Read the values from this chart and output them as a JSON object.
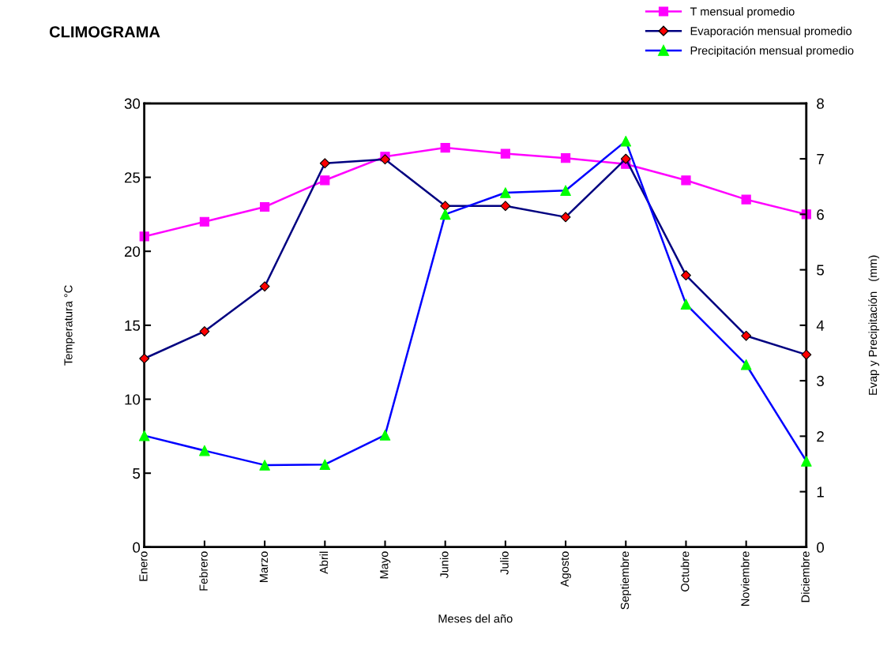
{
  "chart_data": {
    "type": "line",
    "title": "CLIMOGRAMA",
    "xlabel": "Meses del año",
    "ylabel": "Temperatura °C",
    "y2label": "Evap y Precipitación   (mm)",
    "categories": [
      "Enero",
      "Febrero",
      "Marzo",
      "Abril",
      "Mayo",
      "Junio",
      "Julio",
      "Agosto",
      "Septiembre",
      "Octubre",
      "Noviembre",
      "Diciembre"
    ],
    "series": [
      {
        "name": "T mensual promedio",
        "color": "#ff00ff",
        "marker": "square",
        "values": [
          21.0,
          22.0,
          23.0,
          24.8,
          26.4,
          27.0,
          26.6,
          26.3,
          25.9,
          24.8,
          23.5,
          22.5
        ]
      },
      {
        "name": "Evaporación mensual promedio",
        "color": "#000080",
        "marker": "diamond",
        "colors": [
          "#ff0000",
          "#ff0000",
          "#ff0000",
          "#ff0000",
          "#ff0000",
          "#ff0000",
          "#ff0000",
          "#ff0000",
          "#ff0000",
          "#ff0000",
          "#ff0000",
          "#ff0000"
        ],
        "axis": "y2",
        "values": [
          3.4,
          3.89,
          4.7,
          6.92,
          6.99,
          6.15,
          6.15,
          5.95,
          7.0,
          4.9,
          3.81,
          3.47
        ]
      },
      {
        "name": "Precipitación mensual promedio",
        "color": "#0000ff",
        "marker": "triangle",
        "colors": [
          "#00ff00",
          "#00ff00",
          "#00ff00",
          "#00ff00",
          "#00ff00",
          "#00ff00",
          "#00ff00",
          "#00ff00",
          "#00ff00",
          "#00ff00",
          "#00ff00",
          "#00ff00"
        ],
        "axis": "y2",
        "values": [
          2.01,
          1.74,
          1.48,
          1.49,
          2.02,
          6.0,
          6.39,
          6.43,
          7.32,
          4.38,
          3.29,
          1.55
        ]
      }
    ],
    "ylim": [
      0,
      30
    ],
    "yticks": [
      0,
      5,
      10,
      15,
      20,
      25,
      30
    ],
    "y2lim": [
      0,
      8
    ],
    "y2ticks": [
      0,
      1,
      2,
      3,
      4,
      5,
      6,
      7,
      8
    ],
    "grid": false,
    "legend": "top right",
    "line_style": "solid"
  }
}
